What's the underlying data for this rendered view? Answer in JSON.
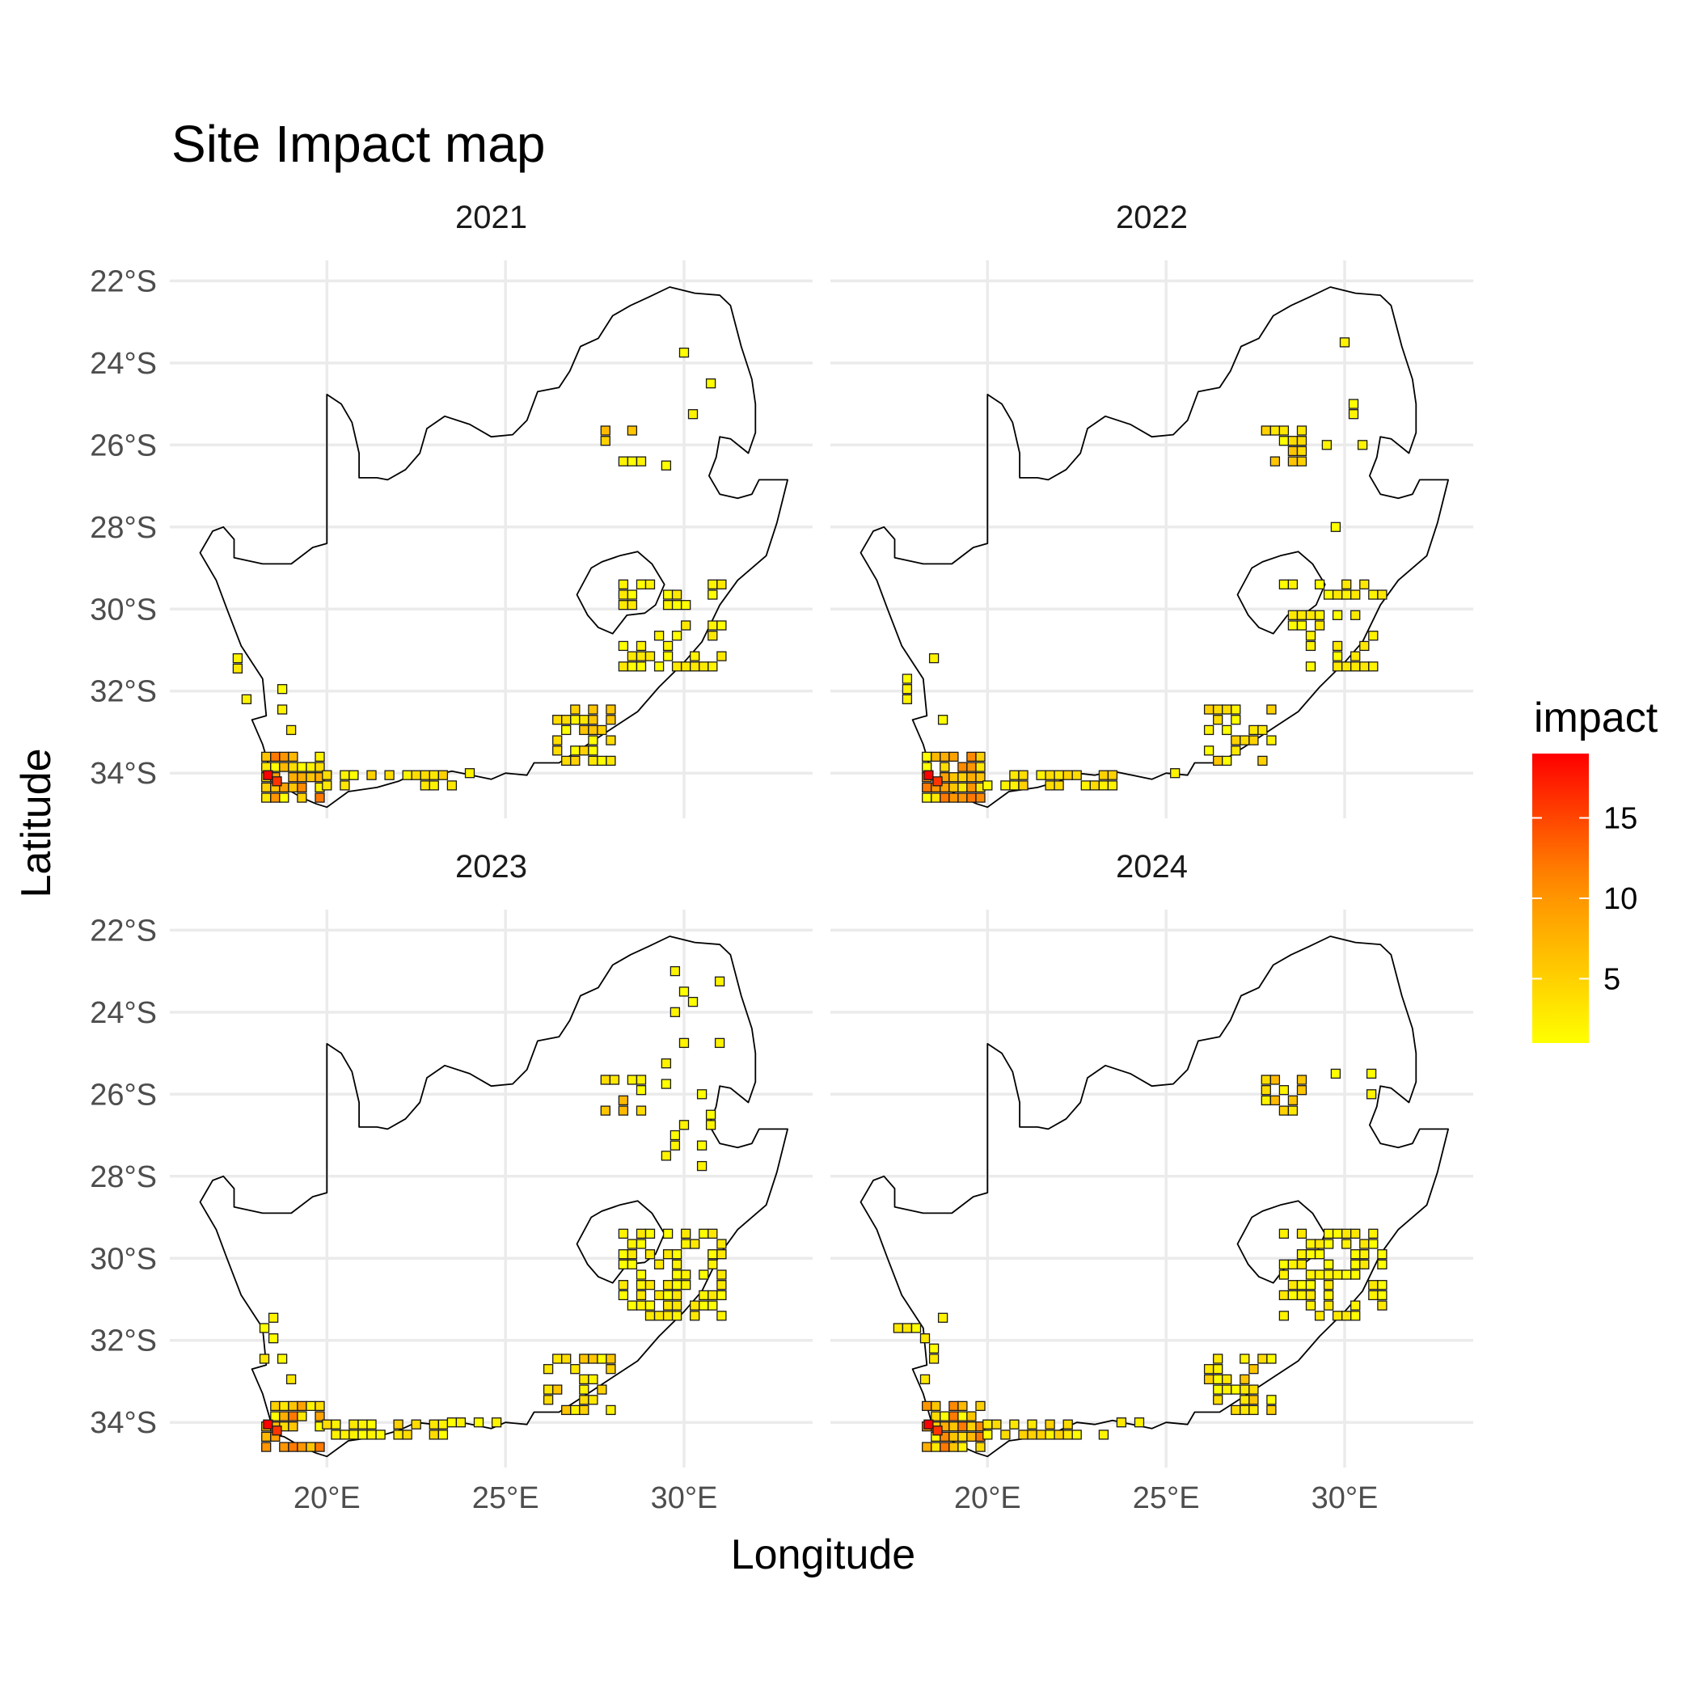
{
  "title": "Site Impact map",
  "x_axis_title": "Longitude",
  "y_axis_title": "Latitude",
  "legend": {
    "title": "impact",
    "ticks": [
      "15",
      "10",
      "5"
    ],
    "colors": {
      "low": "#FFFF00",
      "high": "#FF0000"
    }
  },
  "chart_data": {
    "type": "heatmap",
    "facet_by": "year",
    "panels": [
      {
        "label": "2021"
      },
      {
        "label": "2022"
      },
      {
        "label": "2023"
      },
      {
        "label": "2024"
      }
    ],
    "x_ticks": [
      {
        "value": 20,
        "label": "20°E"
      },
      {
        "value": 25,
        "label": "25°E"
      },
      {
        "value": 30,
        "label": "30°E"
      }
    ],
    "y_ticks": [
      {
        "value": -22,
        "label": "22°S"
      },
      {
        "value": -24,
        "label": "24°S"
      },
      {
        "value": -26,
        "label": "26°S"
      },
      {
        "value": -28,
        "label": "28°S"
      },
      {
        "value": -30,
        "label": "30°S"
      },
      {
        "value": -32,
        "label": "32°S"
      },
      {
        "value": -34,
        "label": "34°S"
      }
    ],
    "xlim": [
      15.6,
      33.6
    ],
    "ylim": [
      -35.1,
      -21.5
    ],
    "impact_range": [
      1,
      19
    ],
    "cell_size_degrees": 0.25,
    "colorscale": [
      "#FFFF00",
      "#FF0000"
    ],
    "grid": true
  }
}
